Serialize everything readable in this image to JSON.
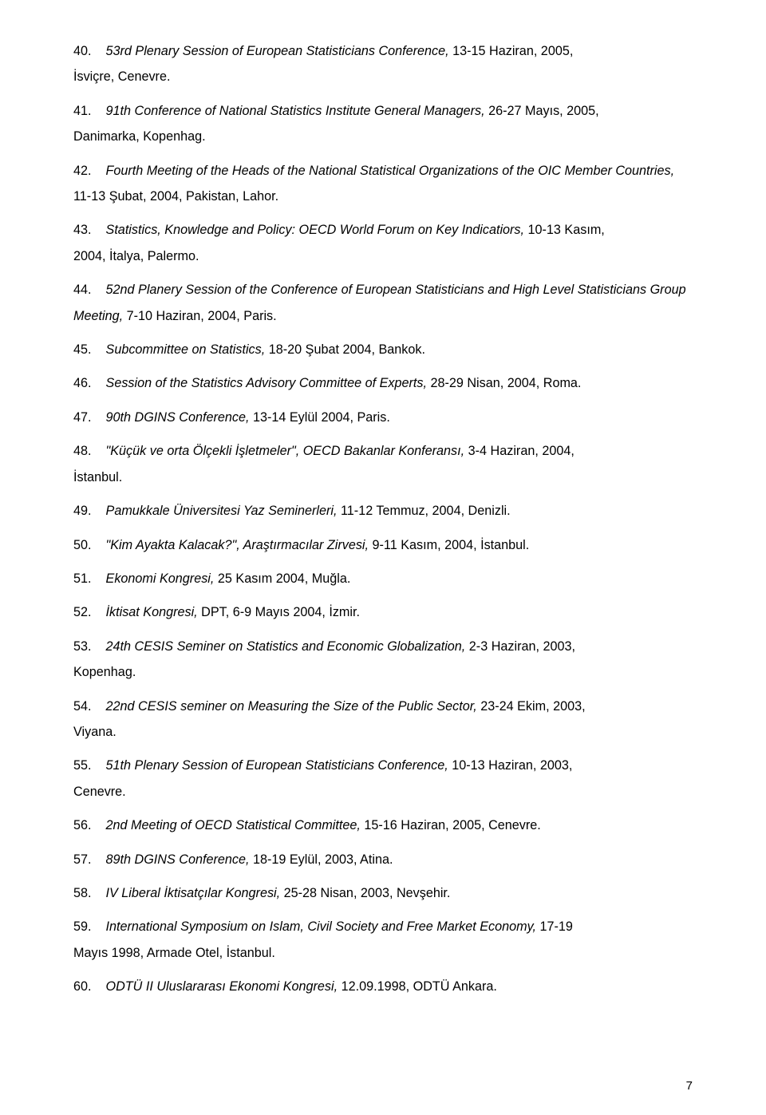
{
  "page_number": "7",
  "entries": [
    {
      "num": "40.",
      "title": "53rd Plenary Session of European Statisticians Conference,",
      "details": " 13-15 Haziran, 2005,",
      "suffix": "İsviçre, Cenevre."
    },
    {
      "num": "41.",
      "title": "91th Conference of National Statistics Institute  General Managers,",
      "details": " 26-27 Mayıs, 2005,",
      "suffix": "Danimarka, Kopenhag."
    },
    {
      "num": "42.",
      "title": "Fourth Meeting of the Heads of the National Statistical Organizations of the OIC Member Countries,",
      "details": " 11-13 Şubat, 2004, Pakistan, Lahor.",
      "suffix": ""
    },
    {
      "num": "43.",
      "title": "Statistics, Knowledge and Policy: OECD World Forum on Key Indicatiors,",
      "details": " 10-13 Kasım,",
      "suffix": "2004, İtalya, Palermo."
    },
    {
      "num": "44.",
      "title": "52nd Planery Session of the Conference  of European  Statisticians and High Level Statisticians Group Meeting,",
      "details": " 7-10 Haziran, 2004, Paris.",
      "suffix": ""
    },
    {
      "num": "45.",
      "title": "Subcommittee on Statistics,",
      "details": " 18-20 Şubat 2004, Bankok.",
      "suffix": ""
    },
    {
      "num": "46.",
      "title": "Session of the Statistics Advisory Committee of Experts,",
      "details": " 28-29 Nisan, 2004, Roma.",
      "suffix": ""
    },
    {
      "num": "47.",
      "title": "90th DGINS Conference,",
      "details": " 13-14 Eylül 2004, Paris.",
      "suffix": ""
    },
    {
      "num": "48.",
      "title": "\"Küçük ve orta Ölçekli İşletmeler\", OECD Bakanlar Konferansı,",
      "details": " 3-4 Haziran, 2004,",
      "suffix": "İstanbul."
    },
    {
      "num": "49.",
      "title": "Pamukkale Üniversitesi Yaz Seminerleri,",
      "details": " 11-12 Temmuz, 2004, Denizli.",
      "suffix": ""
    },
    {
      "num": "50.",
      "title": "\"Kim Ayakta Kalacak?\", Araştırmacılar Zirvesi,",
      "details": " 9-11 Kasım, 2004, İstanbul.",
      "suffix": ""
    },
    {
      "num": "51.",
      "title": "Ekonomi Kongresi,",
      "details": " 25 Kasım 2004, Muğla.",
      "suffix": ""
    },
    {
      "num": "52.",
      "title": "İktisat Kongresi,",
      "details": " DPT, 6-9 Mayıs 2004, İzmir.",
      "suffix": ""
    },
    {
      "num": "53.",
      "title": "24th CESIS Seminer on Statistics and Economic Globalization,",
      "details": " 2-3 Haziran, 2003,",
      "suffix": "Kopenhag."
    },
    {
      "num": "54.",
      "title": "22nd CESIS seminer on Measuring the Size of the Public Sector,",
      "details": " 23-24 Ekim, 2003,",
      "suffix": "Viyana."
    },
    {
      "num": "55.",
      "title": "51th Plenary Session of European  Statisticians Conference,",
      "details": " 10-13 Haziran, 2003,",
      "suffix": "Cenevre."
    },
    {
      "num": "56.",
      "title": "2nd Meeting of OECD Statistical Committee,",
      "details": " 15-16 Haziran, 2005, Cenevre.",
      "suffix": ""
    },
    {
      "num": "57.",
      "title": "89th DGINS Conference,",
      "details": " 18-19 Eylül, 2003, Atina.",
      "suffix": ""
    },
    {
      "num": "58.",
      "title": "IV Liberal İktisatçılar Kongresi,",
      "details": " 25-28 Nisan,  2003, Nevşehir.",
      "suffix": ""
    },
    {
      "num": "59.",
      "title": "International Symposium on Islam, Civil Society and Free Market Economy,",
      "details": " 17-19",
      "suffix": "Mayıs 1998, Armade Otel, İstanbul."
    },
    {
      "num": "60.",
      "title": "ODTÜ II  Uluslararası Ekonomi Kongresi,",
      "details": " 12.09.1998, ODTÜ Ankara.",
      "suffix": ""
    }
  ]
}
